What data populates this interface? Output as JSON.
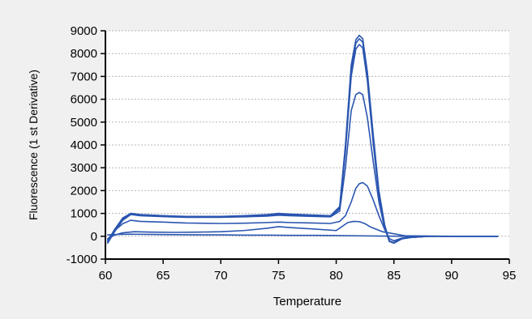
{
  "chart_data": {
    "type": "line",
    "title": "",
    "xlabel": "Temperature",
    "ylabel": "Fluorescence (1 st Derivative)",
    "xlim": [
      60,
      95
    ],
    "ylim": [
      -1000,
      9000
    ],
    "xticks": [
      60,
      65,
      70,
      75,
      80,
      85,
      90,
      95
    ],
    "yticks": [
      -1000,
      0,
      1000,
      2000,
      3000,
      4000,
      5000,
      6000,
      7000,
      8000,
      9000
    ],
    "xtick_labels": [
      "60",
      "65",
      "70",
      "75",
      "80",
      "85",
      "90",
      "95"
    ],
    "ytick_labels": [
      "-1000",
      "0",
      "1000",
      "2000",
      "3000",
      "4000",
      "5000",
      "6000",
      "7000",
      "8000",
      "9000"
    ],
    "grid": {
      "horizontal": true,
      "vertical": false,
      "style": "dotted"
    },
    "legend": "none",
    "line_color": "#2a55b0",
    "series": [
      {
        "x": [
          60.2,
          60.8,
          61.5,
          62.2,
          63,
          65,
          67,
          70,
          72,
          74,
          75,
          76,
          78,
          79.5,
          80.3,
          80.8,
          81.3,
          81.7,
          82,
          82.3,
          82.7,
          83.2,
          83.7,
          84.2,
          84.6,
          85,
          85.7,
          86.5,
          88,
          90,
          92,
          94
        ],
        "y": [
          -250,
          300,
          800,
          1000,
          950,
          900,
          870,
          870,
          900,
          950,
          1000,
          970,
          930,
          900,
          1300,
          4000,
          7500,
          8600,
          8800,
          8650,
          7200,
          4500,
          2000,
          500,
          -200,
          -280,
          -100,
          -50,
          0,
          0,
          0,
          0
        ]
      },
      {
        "x": [
          60.2,
          60.8,
          61.5,
          62.2,
          63,
          65,
          67,
          70,
          72,
          74,
          75,
          76,
          78,
          79.5,
          80.3,
          80.8,
          81.3,
          81.7,
          82,
          82.3,
          82.7,
          83.2,
          83.7,
          84.2,
          84.6,
          85,
          85.7,
          86.5,
          88,
          90,
          92,
          94
        ],
        "y": [
          -280,
          250,
          750,
          980,
          920,
          880,
          850,
          850,
          880,
          930,
          980,
          950,
          910,
          880,
          1250,
          3900,
          7300,
          8450,
          8650,
          8500,
          7000,
          4300,
          1900,
          450,
          -220,
          -300,
          -110,
          -50,
          0,
          0,
          0,
          0
        ]
      },
      {
        "x": [
          60.2,
          60.8,
          61.5,
          62.2,
          63,
          65,
          67,
          70,
          72,
          74,
          75,
          76,
          78,
          79.5,
          80.3,
          80.8,
          81.3,
          81.7,
          82,
          82.3,
          82.7,
          83.2,
          83.7,
          84.2,
          84.6,
          85,
          85.7,
          86.5,
          88,
          90,
          92,
          94
        ],
        "y": [
          -300,
          200,
          700,
          950,
          900,
          860,
          830,
          830,
          860,
          900,
          950,
          930,
          890,
          860,
          1200,
          3700,
          7000,
          8200,
          8400,
          8250,
          6800,
          4100,
          1800,
          400,
          -230,
          -300,
          -110,
          -50,
          0,
          0,
          0,
          0
        ]
      },
      {
        "x": [
          60.2,
          60.8,
          61.5,
          62.2,
          63,
          65,
          67,
          70,
          72,
          74,
          75,
          76,
          78,
          79.5,
          80.3,
          80.8,
          81.3,
          81.7,
          82,
          82.3,
          82.7,
          83.2,
          83.7,
          84.2,
          84.6,
          85,
          85.7,
          86.5,
          88,
          90,
          92,
          94
        ],
        "y": [
          -200,
          300,
          750,
          1000,
          950,
          900,
          850,
          840,
          850,
          880,
          920,
          900,
          870,
          850,
          1100,
          3000,
          5500,
          6200,
          6300,
          6200,
          5200,
          3300,
          1500,
          350,
          -200,
          -280,
          -100,
          -50,
          0,
          0,
          0,
          0
        ]
      },
      {
        "x": [
          60.2,
          60.8,
          61.5,
          62.2,
          63,
          65,
          67,
          70,
          72,
          74,
          75,
          76,
          78,
          79.5,
          80.3,
          80.8,
          81.3,
          81.7,
          82,
          82.3,
          82.7,
          83.2,
          83.7,
          84.2,
          84.6,
          85,
          85.7,
          86.5,
          88,
          90,
          92,
          94
        ],
        "y": [
          -150,
          250,
          550,
          700,
          650,
          620,
          580,
          560,
          570,
          600,
          620,
          600,
          580,
          560,
          650,
          900,
          1500,
          2100,
          2300,
          2350,
          2200,
          1600,
          900,
          300,
          -100,
          -200,
          -80,
          -30,
          0,
          0,
          0,
          0
        ]
      },
      {
        "x": [
          60.2,
          60.8,
          61.5,
          62.5,
          64,
          66,
          68,
          70,
          72,
          74,
          75,
          76,
          78,
          80,
          81,
          81.5,
          82,
          82.5,
          83,
          84,
          86,
          90,
          94
        ],
        "y": [
          -100,
          50,
          150,
          200,
          180,
          170,
          180,
          200,
          250,
          350,
          420,
          380,
          320,
          250,
          600,
          650,
          640,
          550,
          400,
          200,
          20,
          0,
          0
        ]
      },
      {
        "x": [
          60.2,
          61,
          62,
          64,
          66,
          68,
          70,
          72,
          74,
          76,
          78,
          80,
          82,
          84,
          86,
          88,
          90,
          92,
          94
        ],
        "y": [
          60,
          80,
          90,
          80,
          70,
          60,
          60,
          50,
          50,
          40,
          40,
          30,
          20,
          10,
          0,
          0,
          0,
          0,
          0
        ]
      }
    ]
  }
}
